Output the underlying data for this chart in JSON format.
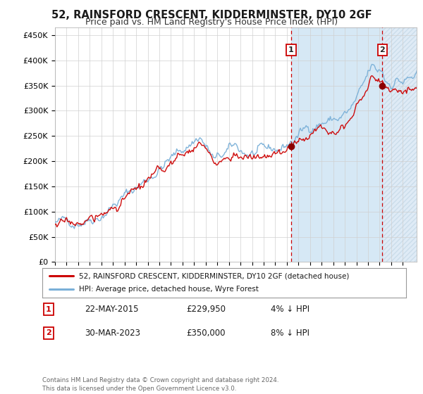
{
  "title": "52, RAINSFORD CRESCENT, KIDDERMINSTER, DY10 2GF",
  "subtitle": "Price paid vs. HM Land Registry's House Price Index (HPI)",
  "title_fontsize": 10.5,
  "subtitle_fontsize": 9,
  "ylabel_ticks": [
    "£0",
    "£50K",
    "£100K",
    "£150K",
    "£200K",
    "£250K",
    "£300K",
    "£350K",
    "£400K",
    "£450K"
  ],
  "ytick_values": [
    0,
    50000,
    100000,
    150000,
    200000,
    250000,
    300000,
    350000,
    400000,
    450000
  ],
  "ylim": [
    0,
    465000
  ],
  "xlim_start": 1995.0,
  "xlim_end": 2026.2,
  "hpi_color": "#7ab0d8",
  "price_color": "#cc0000",
  "background_color": "#d6e8f5",
  "hatch_color": "#c0d8ee",
  "plot_bg_color": "#ffffff",
  "fig_bg_color": "#ffffff",
  "grid_color": "#d0d0d0",
  "sale1_x": 2015.37,
  "sale1_y": 229950,
  "sale1_label": "1",
  "sale2_x": 2023.25,
  "sale2_y": 350000,
  "sale2_label": "2",
  "vline_color": "#cc0000",
  "marker_color": "#8b0000",
  "legend_label1": "52, RAINSFORD CRESCENT, KIDDERMINSTER, DY10 2GF (detached house)",
  "legend_label2": "HPI: Average price, detached house, Wyre Forest",
  "note1_label": "1",
  "note1_date": "22-MAY-2015",
  "note1_price": "£229,950",
  "note1_hpi": "4% ↓ HPI",
  "note2_label": "2",
  "note2_date": "30-MAR-2023",
  "note2_price": "£350,000",
  "note2_hpi": "8% ↓ HPI",
  "footer": "Contains HM Land Registry data © Crown copyright and database right 2024.\nThis data is licensed under the Open Government Licence v3.0."
}
